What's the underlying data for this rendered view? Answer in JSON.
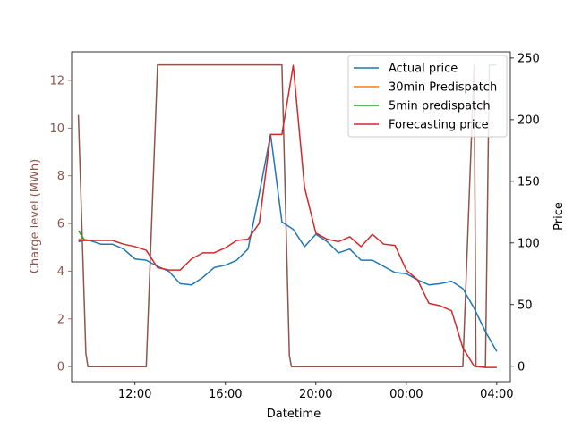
{
  "chart_data": {
    "type": "line",
    "xlabel": "Datetime",
    "ylabel_left": "Charge level (MWh)",
    "ylabel_right": "Price",
    "left_axis_color": "#8c564b",
    "left_ylim": [
      -0.63,
      13.2
    ],
    "right_ylim": [
      -12.5,
      255
    ],
    "xlim": [
      9.2,
      28.6
    ],
    "x_ticks": [
      {
        "value": 12,
        "label": "12:00"
      },
      {
        "value": 16,
        "label": "16:00"
      },
      {
        "value": 20,
        "label": "20:00"
      },
      {
        "value": 24,
        "label": "00:00"
      },
      {
        "value": 28,
        "label": "04:00"
      }
    ],
    "left_ticks": [
      0,
      2,
      4,
      6,
      8,
      10,
      12
    ],
    "right_ticks": [
      0,
      50,
      100,
      150,
      200,
      250
    ],
    "legend": {
      "placement": "top-right",
      "entries": [
        "Actual price",
        "30min Predispatch",
        "5min predispatch",
        "Forecasting price"
      ]
    },
    "charge_series": {
      "name": "Charge level",
      "color": "#8c564b",
      "x": [
        9.5,
        9.83,
        9.92,
        12.5,
        13.0,
        18.5,
        18.83,
        18.92,
        26.5,
        27.0,
        27.08,
        27.5,
        27.67,
        28.0
      ],
      "y": [
        10.55,
        0.55,
        0.0,
        0.0,
        12.65,
        12.65,
        0.45,
        0.0,
        0.0,
        12.65,
        0.0,
        0.0,
        12.65,
        12.65
      ]
    },
    "series": [
      {
        "name": "Actual price",
        "color": "#1f77b4",
        "x": [
          9.5,
          9.75,
          10.0,
          10.5,
          11.0,
          11.5,
          12.0,
          12.5,
          13.0,
          13.5,
          14.0,
          14.5,
          15.0,
          15.5,
          16.0,
          16.5,
          17.0,
          17.5,
          18.0,
          18.5,
          19.0,
          19.5,
          20.0,
          20.5,
          21.0,
          21.5,
          22.0,
          22.5,
          23.0,
          23.5,
          24.0,
          24.5,
          25.0,
          25.5,
          26.0,
          26.5,
          27.0,
          27.5,
          28.0
        ],
        "y": [
          101,
          102,
          102,
          99,
          99,
          95,
          87,
          86,
          81,
          77,
          67,
          66,
          72,
          80,
          82,
          86,
          95,
          140,
          188,
          117,
          111,
          97,
          107,
          101,
          92,
          95,
          86,
          86,
          81,
          76,
          75,
          70,
          66,
          67,
          69,
          63,
          47,
          28,
          12
        ]
      },
      {
        "name": "30min Predispatch",
        "color": "#ff7f0e",
        "x": [
          9.5,
          9.75,
          10.0
        ],
        "y": [
          103,
          103,
          102
        ]
      },
      {
        "name": "5min predispatch",
        "color": "#2ca02c",
        "x": [
          9.5,
          9.75
        ],
        "y": [
          110,
          103
        ]
      },
      {
        "name": "Forecasting price",
        "color": "#d62728",
        "x": [
          9.5,
          9.75,
          10.0,
          10.5,
          11.0,
          11.5,
          12.0,
          12.5,
          13.0,
          13.5,
          14.0,
          14.5,
          15.0,
          15.5,
          16.0,
          16.5,
          17.0,
          17.5,
          18.0,
          18.5,
          19.0,
          19.5,
          20.0,
          20.5,
          21.0,
          21.5,
          22.0,
          22.5,
          23.0,
          23.5,
          24.0,
          24.5,
          25.0,
          25.5,
          26.0,
          26.5,
          27.0,
          27.5,
          28.0
        ],
        "y": [
          102,
          102,
          102,
          102,
          102,
          99,
          97,
          94,
          80,
          78,
          78,
          87,
          92,
          92,
          96,
          102,
          103,
          116,
          188,
          188,
          244,
          145,
          108,
          103,
          101,
          105,
          97,
          107,
          99,
          98,
          78,
          70,
          51,
          49,
          45,
          15,
          0,
          -1,
          -1
        ]
      }
    ]
  }
}
